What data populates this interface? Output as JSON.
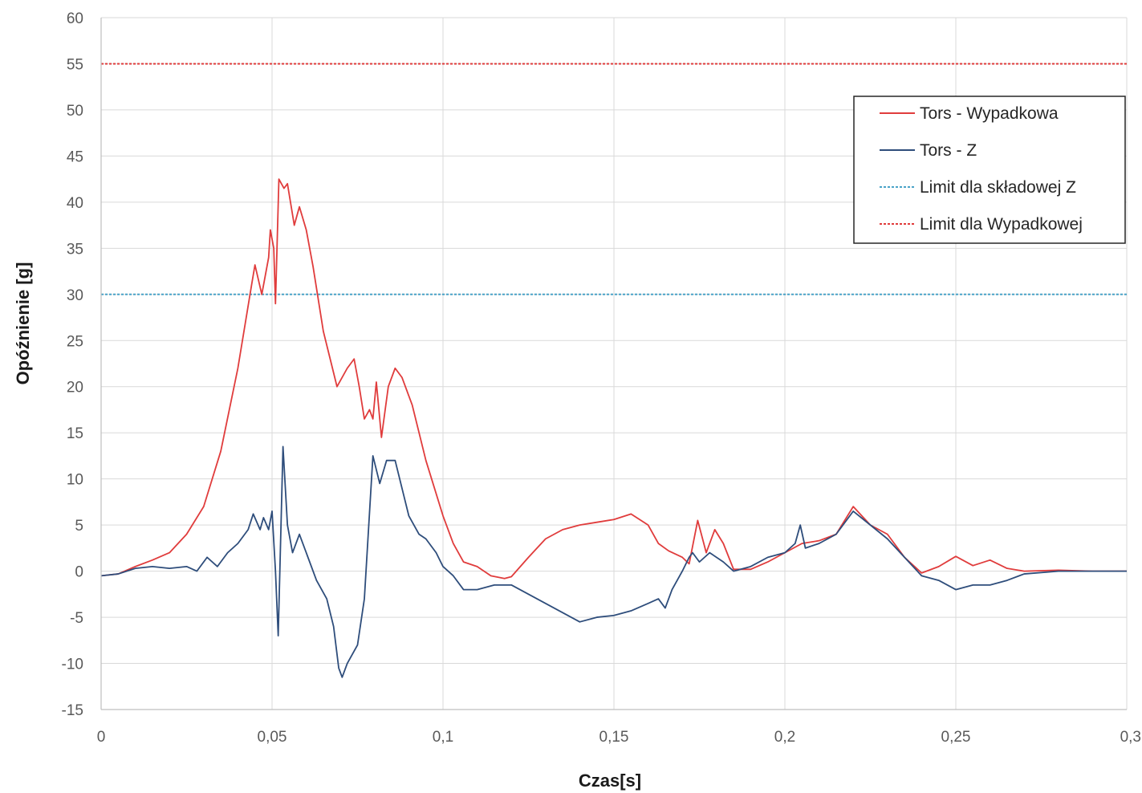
{
  "chart_data": {
    "type": "line",
    "title": "",
    "xlabel": "Czas[s]",
    "ylabel": "Opóźnienie [g]",
    "xlim": [
      0,
      0.3
    ],
    "ylim": [
      -15,
      60
    ],
    "x_ticks": [
      0,
      0.05,
      0.1,
      0.15,
      0.2,
      0.25,
      0.3
    ],
    "x_tick_labels": [
      "0",
      "0,05",
      "0,1",
      "0,15",
      "0,2",
      "0,25",
      "0,3"
    ],
    "y_ticks": [
      -15,
      -10,
      -5,
      0,
      5,
      10,
      15,
      20,
      25,
      30,
      35,
      40,
      45,
      50,
      55,
      60
    ],
    "y_tick_labels": [
      "-15",
      "-10",
      "-5",
      "0",
      "5",
      "10",
      "15",
      "20",
      "25",
      "30",
      "35",
      "40",
      "45",
      "50",
      "55",
      "60"
    ],
    "grid": true,
    "legend_position": "top-right",
    "series": [
      {
        "name": "Tors - Wypadkowa",
        "color": "#e03c3c",
        "style": "solid",
        "points": [
          [
            0,
            -0.5
          ],
          [
            0.005,
            -0.3
          ],
          [
            0.01,
            0.5
          ],
          [
            0.015,
            1.2
          ],
          [
            0.02,
            2
          ],
          [
            0.025,
            4
          ],
          [
            0.03,
            7
          ],
          [
            0.035,
            13
          ],
          [
            0.04,
            22
          ],
          [
            0.044,
            31
          ],
          [
            0.045,
            33.2
          ],
          [
            0.047,
            30
          ],
          [
            0.049,
            34
          ],
          [
            0.0495,
            37
          ],
          [
            0.0505,
            35
          ],
          [
            0.051,
            29
          ],
          [
            0.052,
            42.5
          ],
          [
            0.0535,
            41.5
          ],
          [
            0.0545,
            42
          ],
          [
            0.0565,
            37.5
          ],
          [
            0.058,
            39.5
          ],
          [
            0.06,
            37
          ],
          [
            0.062,
            33
          ],
          [
            0.065,
            26
          ],
          [
            0.067,
            23
          ],
          [
            0.069,
            20
          ],
          [
            0.072,
            22
          ],
          [
            0.074,
            23
          ],
          [
            0.0755,
            20
          ],
          [
            0.077,
            16.5
          ],
          [
            0.0785,
            17.5
          ],
          [
            0.0795,
            16.5
          ],
          [
            0.0805,
            20.5
          ],
          [
            0.082,
            14.5
          ],
          [
            0.084,
            20
          ],
          [
            0.086,
            22
          ],
          [
            0.088,
            21
          ],
          [
            0.091,
            18
          ],
          [
            0.095,
            12
          ],
          [
            0.1,
            6
          ],
          [
            0.103,
            3
          ],
          [
            0.106,
            1
          ],
          [
            0.11,
            0.5
          ],
          [
            0.114,
            -0.5
          ],
          [
            0.118,
            -0.8
          ],
          [
            0.12,
            -0.6
          ],
          [
            0.125,
            1.5
          ],
          [
            0.13,
            3.5
          ],
          [
            0.135,
            4.5
          ],
          [
            0.14,
            5
          ],
          [
            0.145,
            5.3
          ],
          [
            0.15,
            5.6
          ],
          [
            0.155,
            6.2
          ],
          [
            0.16,
            5
          ],
          [
            0.163,
            3
          ],
          [
            0.166,
            2.2
          ],
          [
            0.17,
            1.5
          ],
          [
            0.172,
            0.8
          ],
          [
            0.1745,
            5.5
          ],
          [
            0.177,
            2
          ],
          [
            0.1795,
            4.5
          ],
          [
            0.182,
            3
          ],
          [
            0.185,
            0.2
          ],
          [
            0.19,
            0.2
          ],
          [
            0.195,
            1
          ],
          [
            0.2,
            2
          ],
          [
            0.205,
            3
          ],
          [
            0.21,
            3.3
          ],
          [
            0.215,
            4
          ],
          [
            0.22,
            7
          ],
          [
            0.225,
            5
          ],
          [
            0.23,
            4
          ],
          [
            0.235,
            1.5
          ],
          [
            0.24,
            -0.2
          ],
          [
            0.245,
            0.5
          ],
          [
            0.25,
            1.6
          ],
          [
            0.255,
            0.6
          ],
          [
            0.26,
            1.2
          ],
          [
            0.265,
            0.3
          ],
          [
            0.27,
            0
          ],
          [
            0.28,
            0.1
          ],
          [
            0.29,
            0
          ],
          [
            0.3,
            0
          ]
        ]
      },
      {
        "name": "Tors - Z",
        "color": "#2e4d7b",
        "style": "solid",
        "points": [
          [
            0,
            -0.5
          ],
          [
            0.005,
            -0.3
          ],
          [
            0.01,
            0.3
          ],
          [
            0.015,
            0.5
          ],
          [
            0.02,
            0.3
          ],
          [
            0.025,
            0.5
          ],
          [
            0.028,
            0
          ],
          [
            0.031,
            1.5
          ],
          [
            0.034,
            0.5
          ],
          [
            0.037,
            2
          ],
          [
            0.04,
            3
          ],
          [
            0.043,
            4.5
          ],
          [
            0.0445,
            6.2
          ],
          [
            0.0465,
            4.5
          ],
          [
            0.0475,
            5.8
          ],
          [
            0.049,
            4.5
          ],
          [
            0.05,
            6.5
          ],
          [
            0.051,
            0
          ],
          [
            0.0518,
            -7
          ],
          [
            0.0532,
            13.5
          ],
          [
            0.0545,
            5
          ],
          [
            0.056,
            2
          ],
          [
            0.058,
            4
          ],
          [
            0.06,
            2
          ],
          [
            0.063,
            -1
          ],
          [
            0.066,
            -3
          ],
          [
            0.068,
            -6
          ],
          [
            0.0695,
            -10.5
          ],
          [
            0.0705,
            -11.5
          ],
          [
            0.072,
            -10
          ],
          [
            0.075,
            -8
          ],
          [
            0.077,
            -3
          ],
          [
            0.0795,
            12.5
          ],
          [
            0.0815,
            9.5
          ],
          [
            0.0835,
            12
          ],
          [
            0.086,
            12
          ],
          [
            0.088,
            9
          ],
          [
            0.09,
            6
          ],
          [
            0.093,
            4
          ],
          [
            0.095,
            3.5
          ],
          [
            0.098,
            2
          ],
          [
            0.1,
            0.5
          ],
          [
            0.103,
            -0.5
          ],
          [
            0.106,
            -2
          ],
          [
            0.11,
            -2
          ],
          [
            0.115,
            -1.5
          ],
          [
            0.12,
            -1.5
          ],
          [
            0.125,
            -2.5
          ],
          [
            0.13,
            -3.5
          ],
          [
            0.135,
            -4.5
          ],
          [
            0.14,
            -5.5
          ],
          [
            0.145,
            -5
          ],
          [
            0.15,
            -4.8
          ],
          [
            0.155,
            -4.3
          ],
          [
            0.16,
            -3.5
          ],
          [
            0.163,
            -3
          ],
          [
            0.165,
            -4
          ],
          [
            0.167,
            -2
          ],
          [
            0.17,
            0
          ],
          [
            0.172,
            1.5
          ],
          [
            0.173,
            2
          ],
          [
            0.175,
            1
          ],
          [
            0.178,
            2
          ],
          [
            0.182,
            1
          ],
          [
            0.185,
            0
          ],
          [
            0.19,
            0.5
          ],
          [
            0.195,
            1.5
          ],
          [
            0.2,
            2
          ],
          [
            0.203,
            3
          ],
          [
            0.2045,
            5
          ],
          [
            0.206,
            2.5
          ],
          [
            0.21,
            3
          ],
          [
            0.215,
            4
          ],
          [
            0.22,
            6.5
          ],
          [
            0.225,
            5
          ],
          [
            0.23,
            3.5
          ],
          [
            0.235,
            1.5
          ],
          [
            0.24,
            -0.5
          ],
          [
            0.245,
            -1
          ],
          [
            0.25,
            -2
          ],
          [
            0.255,
            -1.5
          ],
          [
            0.26,
            -1.5
          ],
          [
            0.265,
            -1
          ],
          [
            0.27,
            -0.3
          ],
          [
            0.28,
            0
          ],
          [
            0.29,
            0
          ],
          [
            0.3,
            0
          ]
        ]
      },
      {
        "name": "Limit dla składowej Z",
        "color": "#4aa3c8",
        "style": "dotted",
        "points": [
          [
            0,
            30
          ],
          [
            0.3,
            30
          ]
        ]
      },
      {
        "name": "Limit dla Wypadkowej",
        "color": "#e03c3c",
        "style": "dotted",
        "points": [
          [
            0,
            55
          ],
          [
            0.3,
            55
          ]
        ]
      }
    ]
  }
}
